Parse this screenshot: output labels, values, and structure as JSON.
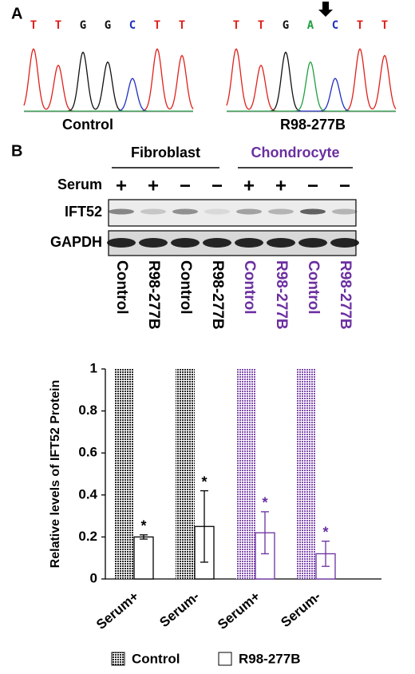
{
  "panel_a": {
    "label": "A",
    "base_colors": {
      "T": "#e0201b",
      "G": "#111111",
      "C": "#2030c0",
      "A": "#20a040"
    },
    "traces": [
      {
        "bases": [
          "T",
          "T",
          "G",
          "G",
          "C",
          "T",
          "T"
        ],
        "name": "Control"
      },
      {
        "bases": [
          "T",
          "T",
          "G",
          "A",
          "C",
          "T",
          "T"
        ],
        "name": "R98-277B"
      }
    ]
  },
  "blot": {
    "label": "B",
    "groups": [
      "Fibroblast",
      "Chondrocyte"
    ],
    "group_colors": [
      "#000000",
      "#6b2fa0"
    ],
    "row_labels": [
      "Serum",
      "IFT52",
      "GAPDH"
    ],
    "serum": [
      "+",
      "+",
      "−",
      "−",
      "+",
      "+",
      "−",
      "−"
    ],
    "lanes": [
      "Control",
      "R98-277B",
      "Control",
      "R98-277B",
      "Control",
      "R98-277B",
      "Control",
      "R98-277B"
    ]
  },
  "chart_data": {
    "type": "bar",
    "ylabel": "Relative levels of IFT52 Protein",
    "categories": [
      "Serum+",
      "Serum-",
      "Serum+",
      "Serum-"
    ],
    "category_colors": [
      "#000000",
      "#000000",
      "#6b2fa0",
      "#6b2fa0"
    ],
    "series": [
      {
        "name": "Control",
        "values": [
          1,
          1,
          1,
          1
        ]
      },
      {
        "name": "R98-277B",
        "values": [
          0.2,
          0.25,
          0.22,
          0.12
        ],
        "errors": [
          0.01,
          0.17,
          0.1,
          0.06
        ]
      }
    ],
    "annotations": [
      "*",
      "*",
      "*",
      "*"
    ],
    "ylim": [
      0,
      1
    ],
    "yticks": [
      0,
      0.2,
      0.4,
      0.6,
      0.8,
      1
    ]
  }
}
